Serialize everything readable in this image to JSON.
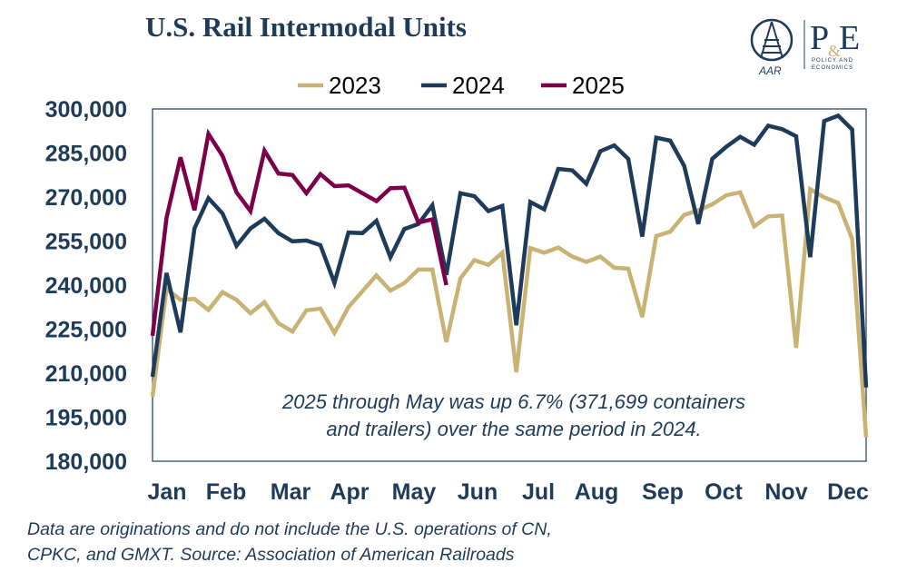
{
  "title": "U.S. Rail Intermodal Units",
  "logo": {
    "left_text": "AAR",
    "right_text": "P&E",
    "right_subtext": "POLICY AND ECONOMICS"
  },
  "footer": [
    "Data are originations and do not include the U.S. operations of CN,",
    "CPKC, and GMXT. Source: Association of American Railroads"
  ],
  "chart_data": {
    "type": "line",
    "title": "U.S. Rail Intermodal Units",
    "xlabel": "",
    "ylabel": "",
    "x_tick_labels": [
      "Jan",
      "Feb",
      "Mar",
      "Apr",
      "May",
      "Jun",
      "Jul",
      "Aug",
      "Sep",
      "Oct",
      "Nov",
      "Dec"
    ],
    "y_tick_labels": [
      "300,000",
      "285,000",
      "270,000",
      "255,000",
      "240,000",
      "225,000",
      "210,000",
      "195,000",
      "180,000"
    ],
    "ylim": [
      180000,
      300000
    ],
    "x_unit": "week",
    "grid": false,
    "legend": "top",
    "annotation": [
      "2025 through May was up 6.7% (371,699 containers",
      "and trailers) over the same period in 2024."
    ],
    "series": [
      {
        "name": "2023",
        "color": "#C9B374",
        "values": [
          202000,
          238700,
          235000,
          235300,
          231500,
          237600,
          235000,
          230400,
          234200,
          227000,
          224200,
          231400,
          232000,
          223700,
          232500,
          237900,
          243300,
          238100,
          240700,
          245300,
          245300,
          220600,
          242300,
          248500,
          246900,
          251000,
          210300,
          252600,
          251000,
          252800,
          249700,
          247900,
          249700,
          245900,
          245600,
          229100,
          256700,
          258200,
          263900,
          265500,
          267500,
          270600,
          271600,
          260000,
          263400,
          263700,
          218600,
          272700,
          269900,
          268000,
          255700,
          188100
        ]
      },
      {
        "name": "2024",
        "color": "#1F3B5A",
        "values": [
          208800,
          244100,
          223900,
          259300,
          269600,
          264400,
          253400,
          259300,
          262600,
          257700,
          254900,
          255200,
          253600,
          240700,
          257900,
          257700,
          261900,
          249500,
          259100,
          260800,
          267200,
          243500,
          271300,
          270300,
          265200,
          267000,
          226300,
          268300,
          265800,
          279600,
          279100,
          274500,
          285600,
          287600,
          283000,
          256500,
          290200,
          289200,
          280600,
          260800,
          283000,
          287100,
          290500,
          287800,
          294300,
          293100,
          290700,
          249500,
          295900,
          297700,
          293000,
          205100
        ]
      },
      {
        "name": "2025",
        "color": "#7B0049",
        "values": [
          222700,
          262900,
          283500,
          265500,
          291500,
          284000,
          271600,
          265200,
          285800,
          278000,
          277500,
          271300,
          277800,
          273700,
          274000,
          271300,
          268600,
          273000,
          273200,
          261300,
          262400,
          240000
        ]
      }
    ]
  }
}
